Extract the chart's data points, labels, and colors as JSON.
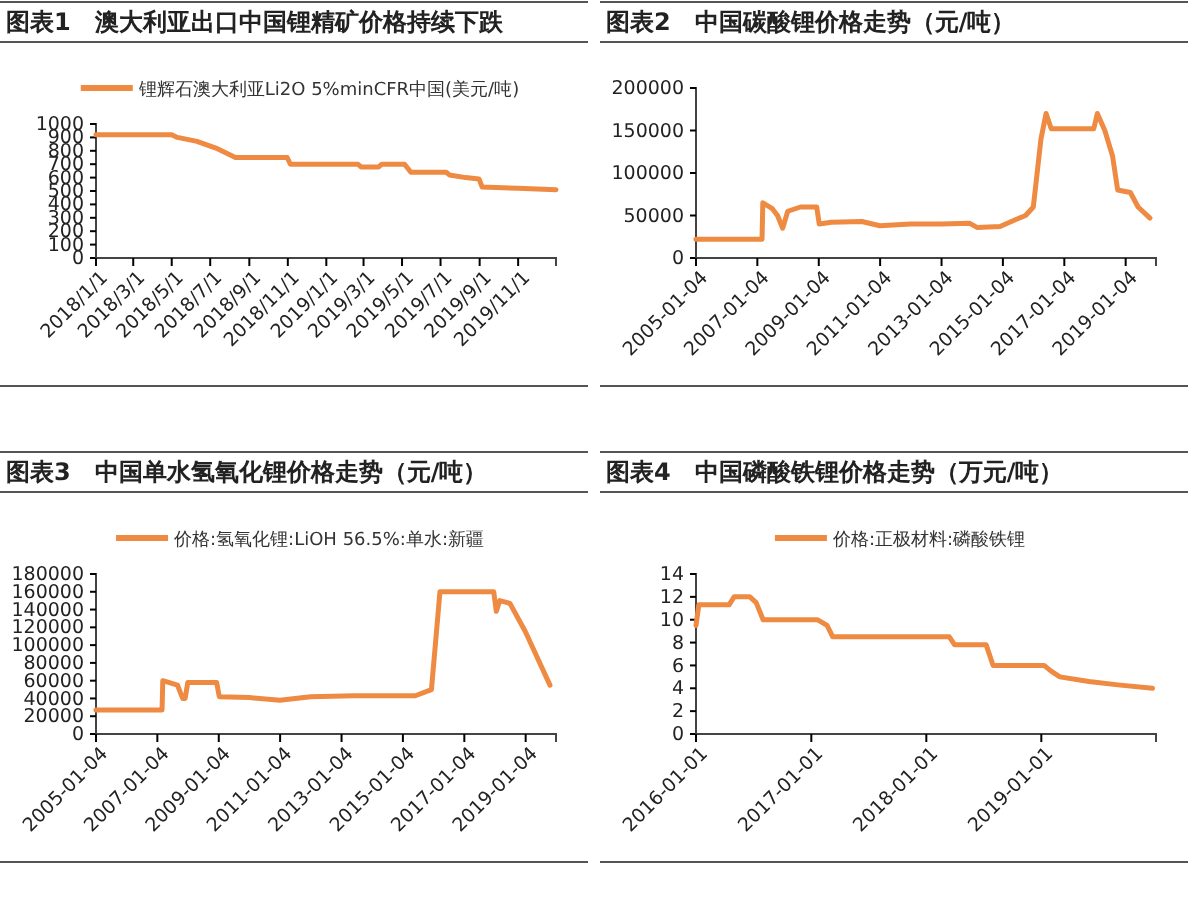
{
  "chart_data": [
    {
      "type": "line",
      "title": "图表1　澳大利亚出口中国锂精矿价格持续下跌",
      "legend": "top",
      "xlim": [
        "2018-01-01",
        "2019-12-31"
      ],
      "ylim": [
        0,
        1000
      ],
      "xticks": [
        {
          "value": "2018-01-01",
          "label": "2018/1/1"
        },
        {
          "value": "2018-03-01",
          "label": "2018/3/1"
        },
        {
          "value": "2018-05-01",
          "label": "2018/5/1"
        },
        {
          "value": "2018-07-01",
          "label": "2018/7/1"
        },
        {
          "value": "2018-09-01",
          "label": "2018/9/1"
        },
        {
          "value": "2018-11-01",
          "label": "2018/11/1"
        },
        {
          "value": "2019-01-01",
          "label": "2019/1/1"
        },
        {
          "value": "2019-03-01",
          "label": "2019/3/1"
        },
        {
          "value": "2019-05-01",
          "label": "2019/5/1"
        },
        {
          "value": "2019-07-01",
          "label": "2019/7/1"
        },
        {
          "value": "2019-09-01",
          "label": "2019/9/1"
        },
        {
          "value": "2019-11-01",
          "label": "2019/11/1"
        }
      ],
      "yticks": [
        0,
        100,
        200,
        300,
        400,
        500,
        600,
        700,
        800,
        900,
        1000
      ],
      "series": [
        {
          "name": "锂辉石澳大利亚Li2O 5%minCFR中国(美元/吨)",
          "color": "#ee8a42",
          "x": [
            "2018-01-01",
            "2018-05-01",
            "2018-05-10",
            "2018-06-10",
            "2018-07-10",
            "2018-08-10",
            "2018-10-31",
            "2018-11-05",
            "2019-02-20",
            "2019-02-25",
            "2019-03-25",
            "2019-03-30",
            "2019-05-05",
            "2019-05-15",
            "2019-07-10",
            "2019-07-15",
            "2019-08-10",
            "2019-08-31",
            "2019-09-05",
            "2019-11-01",
            "2019-12-31"
          ],
          "values": [
            920,
            920,
            900,
            870,
            820,
            750,
            750,
            700,
            700,
            680,
            680,
            700,
            700,
            640,
            640,
            620,
            600,
            590,
            530,
            520,
            510
          ]
        }
      ]
    },
    {
      "type": "line",
      "title": "图表2　中国碳酸锂价格走势（元/吨）",
      "xlim": [
        "2005-01-04",
        "2019-12-31"
      ],
      "ylim": [
        0,
        200000
      ],
      "xticks": [
        "2005-01-04",
        "2007-01-04",
        "2009-01-04",
        "2011-01-04",
        "2013-01-04",
        "2015-01-04",
        "2017-01-04",
        "2019-01-04"
      ],
      "yticks": [
        0,
        50000,
        100000,
        150000,
        200000
      ],
      "series": [
        {
          "color": "#ee8a42",
          "x": [
            "2005-01-04",
            "2007-03-01",
            "2007-03-10",
            "2007-07-01",
            "2007-09-01",
            "2007-11-01",
            "2008-01-01",
            "2008-06-01",
            "2008-12-10",
            "2009-01-10",
            "2009-06-01",
            "2010-06-01",
            "2011-01-01",
            "2012-01-01",
            "2013-01-01",
            "2013-12-01",
            "2014-03-01",
            "2014-12-01",
            "2015-06-01",
            "2015-10-01",
            "2016-01-01",
            "2016-04-01",
            "2016-06-01",
            "2016-08-01",
            "2017-06-01",
            "2017-12-20",
            "2018-02-01",
            "2018-05-01",
            "2018-08-01",
            "2018-10-01",
            "2019-03-01",
            "2019-06-01",
            "2019-10-20"
          ],
          "values": [
            22000,
            22000,
            65000,
            58000,
            50000,
            35000,
            55000,
            60000,
            60000,
            40000,
            42000,
            43000,
            38000,
            40000,
            40000,
            41000,
            36000,
            37000,
            45000,
            50000,
            60000,
            140000,
            170000,
            152000,
            152000,
            152000,
            170000,
            150000,
            120000,
            80000,
            77000,
            60000,
            47000
          ]
        }
      ]
    },
    {
      "type": "line",
      "title": "图表3　中国单水氢氧化锂价格走势（元/吨）",
      "legend": "top",
      "xlim": [
        "2005-01-04",
        "2019-12-31"
      ],
      "ylim": [
        0,
        180000
      ],
      "xticks": [
        "2005-01-04",
        "2007-01-04",
        "2009-01-04",
        "2011-01-04",
        "2013-01-04",
        "2015-01-04",
        "2017-01-04",
        "2019-01-04"
      ],
      "yticks": [
        0,
        20000,
        40000,
        60000,
        80000,
        100000,
        120000,
        140000,
        160000,
        180000
      ],
      "series": [
        {
          "name": "价格:氢氧化锂:LiOH 56.5%:单水:新疆",
          "color": "#ee8a42",
          "x": [
            "2005-01-04",
            "2007-03-01",
            "2007-03-10",
            "2007-09-01",
            "2007-11-01",
            "2007-12-01",
            "2008-01-01",
            "2008-12-10",
            "2009-01-10",
            "2010-01-01",
            "2011-01-01",
            "2012-01-01",
            "2013-06-01",
            "2014-06-01",
            "2015-06-01",
            "2015-12-10",
            "2016-03-20",
            "2017-12-20",
            "2018-01-20",
            "2018-03-01",
            "2018-07-01",
            "2019-01-01",
            "2019-10-20"
          ],
          "values": [
            27000,
            27000,
            60000,
            55000,
            40000,
            40000,
            58000,
            58000,
            42000,
            41000,
            38000,
            42000,
            43000,
            43000,
            43000,
            50000,
            160000,
            160000,
            138000,
            150000,
            147000,
            115000,
            55000
          ]
        }
      ]
    },
    {
      "type": "line",
      "title": "图表4　中国磷酸铁锂价格走势（万元/吨）",
      "legend": "top",
      "xlim": [
        "2016-01-01",
        "2019-12-31"
      ],
      "ylim": [
        0,
        14
      ],
      "xticks": [
        "2016-01-01",
        "2017-01-01",
        "2018-01-01",
        "2019-01-01"
      ],
      "yticks": [
        0,
        2,
        4,
        6,
        8,
        10,
        12,
        14
      ],
      "series": [
        {
          "name": "价格:正极材料:磷酸铁锂",
          "color": "#ee8a42",
          "x": [
            "2016-01-01",
            "2016-01-10",
            "2016-04-15",
            "2016-05-01",
            "2016-06-20",
            "2016-07-10",
            "2016-08-01",
            "2017-01-20",
            "2017-02-20",
            "2017-03-10",
            "2018-03-15",
            "2018-04-01",
            "2018-07-10",
            "2018-08-01",
            "2019-01-10",
            "2019-02-01",
            "2019-03-01",
            "2019-06-01",
            "2019-09-01",
            "2019-12-20"
          ],
          "values": [
            9.5,
            11.3,
            11.3,
            12,
            12,
            11.5,
            10,
            10,
            9.5,
            8.5,
            8.5,
            7.8,
            7.8,
            6,
            6,
            5.5,
            5,
            4.6,
            4.3,
            4
          ]
        }
      ]
    }
  ]
}
